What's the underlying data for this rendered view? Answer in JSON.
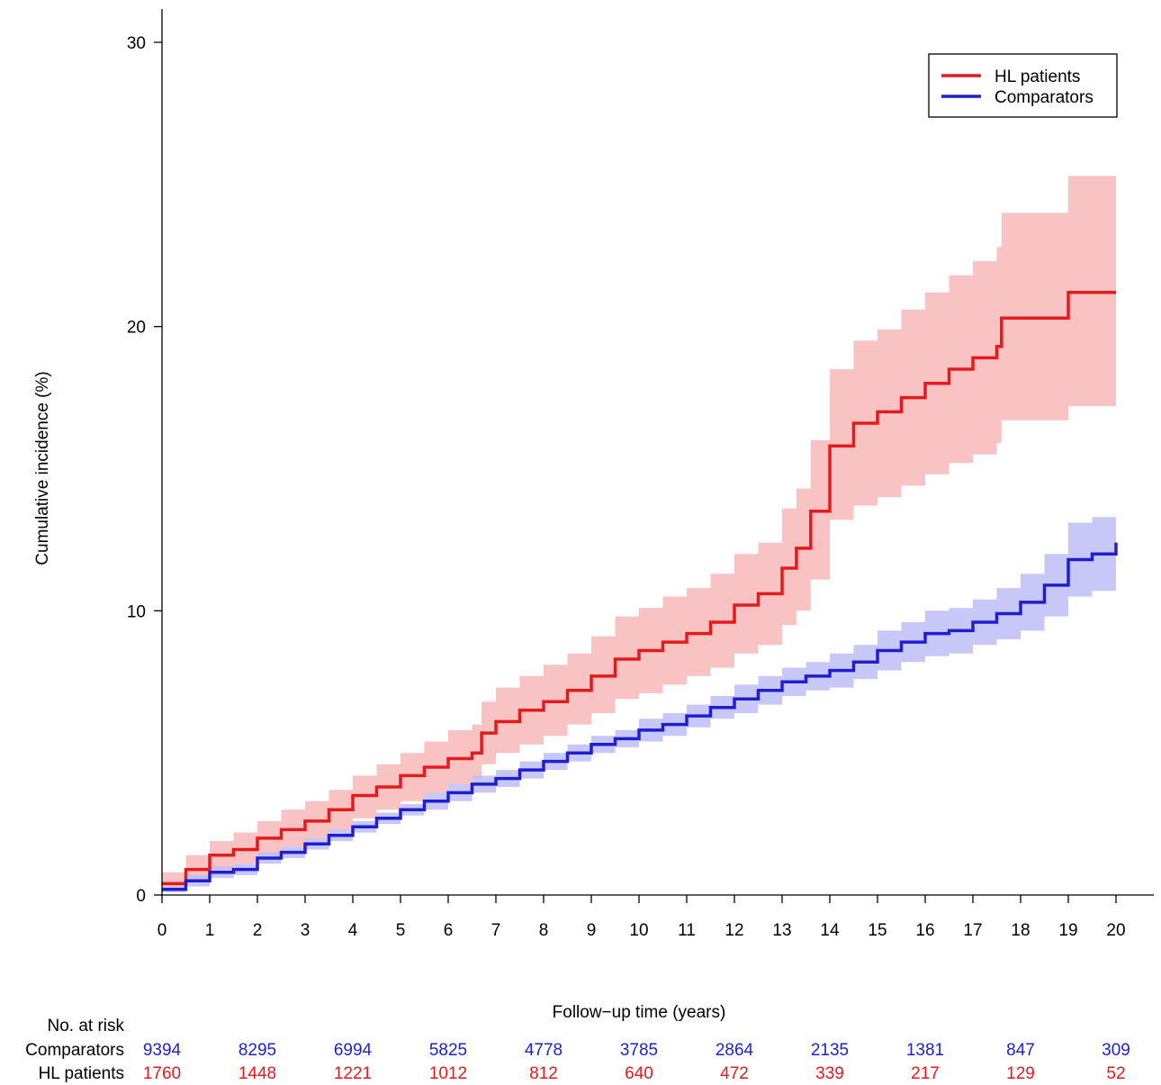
{
  "chart_data": {
    "type": "line",
    "xlabel": "Follow−up time (years)",
    "ylabel": "Cumulative incidence (%)",
    "xlim": [
      0,
      20
    ],
    "ylim": [
      0,
      30
    ],
    "x_ticks": [
      0,
      1,
      2,
      3,
      4,
      5,
      6,
      7,
      8,
      9,
      10,
      11,
      12,
      13,
      14,
      15,
      16,
      17,
      18,
      19,
      20
    ],
    "y_ticks": [
      0,
      10,
      20,
      30
    ],
    "grid": false,
    "legend_position": "top-right",
    "series": [
      {
        "name": "HL patients",
        "color": "#e41a1c",
        "band_color": "#f9b9b9",
        "x": [
          0,
          0.5,
          1,
          1.5,
          2,
          2.5,
          3,
          3.5,
          4,
          4.5,
          5,
          5.5,
          6,
          6.5,
          6.7,
          7,
          7.5,
          8,
          8.5,
          9,
          9.5,
          10,
          10.5,
          11,
          11.5,
          12,
          12.5,
          13,
          13.3,
          13.6,
          14,
          14.5,
          15,
          15.5,
          16,
          16.5,
          17,
          17.5,
          17.6,
          18,
          18.5,
          19,
          19.5,
          20
        ],
        "y": [
          0.4,
          0.9,
          1.4,
          1.6,
          2.0,
          2.3,
          2.6,
          3.0,
          3.5,
          3.8,
          4.2,
          4.5,
          4.8,
          5.0,
          5.7,
          6.1,
          6.5,
          6.8,
          7.2,
          7.7,
          8.3,
          8.6,
          8.9,
          9.2,
          9.6,
          10.2,
          10.6,
          11.5,
          12.2,
          13.5,
          15.8,
          16.6,
          17.0,
          17.5,
          18.0,
          18.5,
          18.9,
          19.3,
          20.3,
          20.3,
          20.3,
          21.2,
          21.2,
          21.2
        ],
        "lower": [
          0.2,
          0.5,
          0.9,
          1.1,
          1.4,
          1.7,
          2.0,
          2.3,
          2.7,
          3.0,
          3.3,
          3.6,
          3.9,
          4.1,
          4.6,
          5.0,
          5.3,
          5.6,
          6.0,
          6.4,
          6.9,
          7.1,
          7.4,
          7.7,
          8.0,
          8.5,
          8.8,
          9.5,
          10.0,
          11.1,
          13.2,
          13.7,
          14.0,
          14.4,
          14.8,
          15.2,
          15.5,
          15.9,
          16.7,
          16.7,
          16.7,
          17.2,
          17.2,
          17.2
        ],
        "upper": [
          0.8,
          1.4,
          1.9,
          2.2,
          2.6,
          3.0,
          3.3,
          3.7,
          4.2,
          4.6,
          5.0,
          5.4,
          5.8,
          6.0,
          6.8,
          7.3,
          7.7,
          8.1,
          8.5,
          9.1,
          9.8,
          10.1,
          10.5,
          10.8,
          11.3,
          12.0,
          12.4,
          13.6,
          14.3,
          16.0,
          18.5,
          19.5,
          19.9,
          20.6,
          21.2,
          21.8,
          22.3,
          22.8,
          24.0,
          24.0,
          24.0,
          25.3,
          25.3,
          25.3
        ]
      },
      {
        "name": "Comparators",
        "color": "#1f1fcf",
        "band_color": "#bdbdf7",
        "x": [
          0,
          0.5,
          1,
          1.5,
          2,
          2.5,
          3,
          3.5,
          4,
          4.5,
          5,
          5.5,
          6,
          6.5,
          7,
          7.5,
          8,
          8.5,
          9,
          9.5,
          10,
          10.5,
          11,
          11.5,
          12,
          12.5,
          13,
          13.5,
          14,
          14.5,
          15,
          15.5,
          16,
          16.5,
          17,
          17.5,
          18,
          18.5,
          19,
          19.5,
          20
        ],
        "y": [
          0.2,
          0.5,
          0.8,
          0.9,
          1.3,
          1.5,
          1.8,
          2.1,
          2.4,
          2.7,
          3.0,
          3.3,
          3.6,
          3.9,
          4.1,
          4.4,
          4.7,
          5.0,
          5.3,
          5.5,
          5.8,
          6.0,
          6.3,
          6.6,
          6.9,
          7.2,
          7.5,
          7.7,
          7.9,
          8.2,
          8.6,
          8.9,
          9.2,
          9.3,
          9.6,
          9.9,
          10.3,
          10.9,
          11.8,
          12.0,
          12.4
        ],
        "lower": [
          0.1,
          0.3,
          0.6,
          0.7,
          1.1,
          1.3,
          1.6,
          1.9,
          2.2,
          2.5,
          2.8,
          3.0,
          3.3,
          3.6,
          3.8,
          4.1,
          4.4,
          4.7,
          5.0,
          5.2,
          5.4,
          5.6,
          5.9,
          6.2,
          6.4,
          6.7,
          7.0,
          7.2,
          7.3,
          7.6,
          7.9,
          8.2,
          8.4,
          8.5,
          8.8,
          9.0,
          9.3,
          9.8,
          10.5,
          10.7,
          11.0
        ],
        "upper": [
          0.3,
          0.7,
          1.0,
          1.1,
          1.5,
          1.7,
          2.0,
          2.3,
          2.6,
          2.9,
          3.2,
          3.6,
          3.9,
          4.2,
          4.4,
          4.7,
          5.0,
          5.3,
          5.6,
          5.8,
          6.2,
          6.4,
          6.7,
          7.0,
          7.4,
          7.7,
          8.0,
          8.2,
          8.5,
          8.8,
          9.3,
          9.6,
          10.0,
          10.1,
          10.4,
          10.8,
          11.3,
          12.0,
          13.1,
          13.3,
          13.9
        ]
      }
    ],
    "risk_table": {
      "title": "No. at risk",
      "times": [
        0,
        2,
        4,
        6,
        8,
        10,
        12,
        14,
        16,
        18,
        20
      ],
      "rows": [
        {
          "label": "Comparators",
          "color": "#1f1fcf",
          "values": [
            "9394",
            "8295",
            "6994",
            "5825",
            "4778",
            "3785",
            "2864",
            "2135",
            "1381",
            "847",
            "309"
          ]
        },
        {
          "label": "HL patients",
          "color": "#e41a1c",
          "values": [
            "1760",
            "1448",
            "1221",
            "1012",
            "812",
            "640",
            "472",
            "339",
            "217",
            "129",
            "52"
          ]
        }
      ]
    }
  }
}
